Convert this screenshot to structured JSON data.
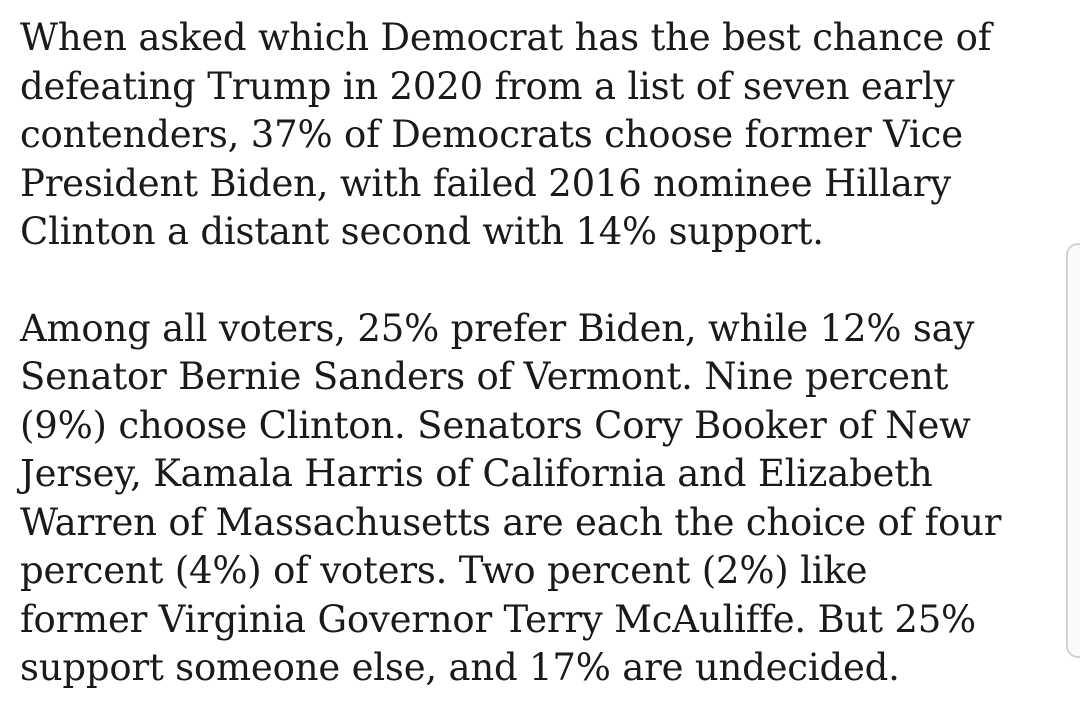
{
  "article": {
    "paragraphs": [
      {
        "lines": [
          "When asked which Democrat has the best chance of",
          "defeating Trump in 2020 from a list of seven early",
          "contenders, 37% of Democrats choose former Vice",
          "President Biden, with failed 2016 nominee Hillary",
          "Clinton a distant second with 14% support."
        ]
      },
      {
        "lines": [
          "Among all voters, 25% prefer Biden, while 12% say",
          "Senator Bernie Sanders of Vermont. Nine percent",
          "(9%) choose Clinton. Senators Cory Booker of New",
          "Jersey, Kamala Harris of California and Elizabeth",
          "Warren of Massachusetts are each the choice of four",
          "percent (4%) of voters. Two percent (2%) like",
          "former Virginia Governor Terry McAuliffe. But 25%",
          "support someone else, and 17% are undecided."
        ]
      }
    ]
  }
}
